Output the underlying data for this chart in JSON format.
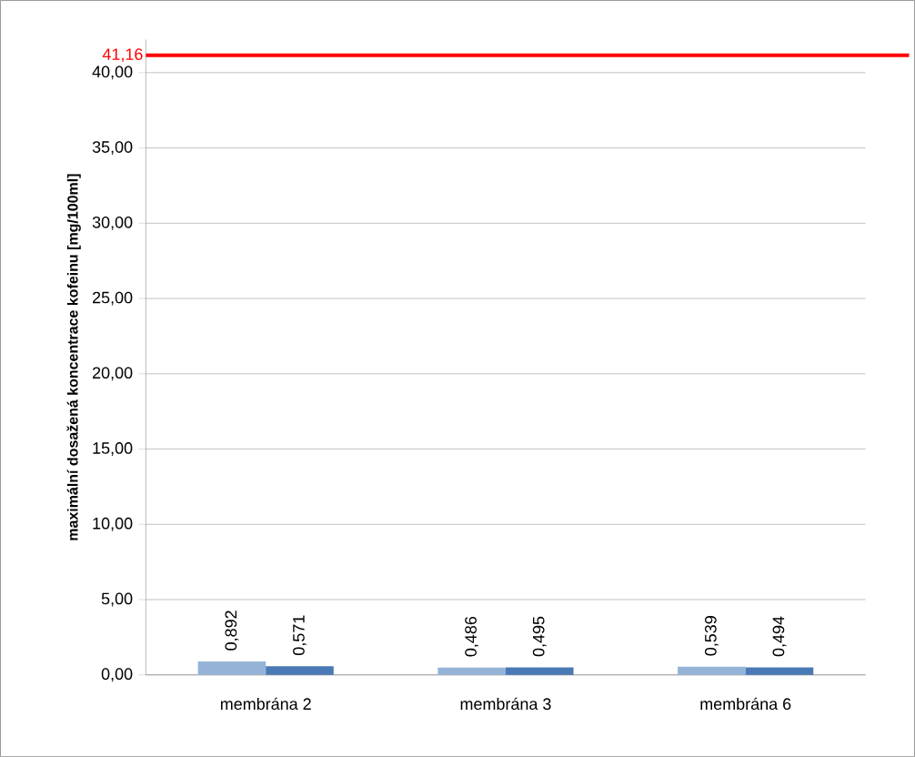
{
  "chart_data": {
    "type": "bar",
    "ylabel": "maximální dosažená koncentrace kofeinu [mg/100ml]",
    "categories": [
      "membrána 2",
      "membrána 3",
      "membrána 6"
    ],
    "series": [
      {
        "color": "#95b3d7",
        "values": [
          0.892,
          0.486,
          0.539
        ],
        "value_labels": [
          "0,892",
          "0,486",
          "0,539"
        ]
      },
      {
        "color": "#4a7ab5",
        "values": [
          0.571,
          0.495,
          0.494
        ],
        "value_labels": [
          "0,571",
          "0,495",
          "0,494"
        ]
      }
    ],
    "ylim": [
      0,
      42.2
    ],
    "yticks": [
      {
        "value": 0,
        "label": "0,00"
      },
      {
        "value": 5,
        "label": "5,00"
      },
      {
        "value": 10,
        "label": "10,00"
      },
      {
        "value": 15,
        "label": "15,00"
      },
      {
        "value": 20,
        "label": "20,00"
      },
      {
        "value": 25,
        "label": "25,00"
      },
      {
        "value": 30,
        "label": "30,00"
      },
      {
        "value": 35,
        "label": "35,00"
      },
      {
        "value": 40,
        "label": "40,00"
      }
    ],
    "ref_lines": [
      {
        "axis": "y",
        "value": 41.16,
        "label": "41,16",
        "color": "#ff0000",
        "line_style": "solid"
      }
    ],
    "grid": "y"
  }
}
